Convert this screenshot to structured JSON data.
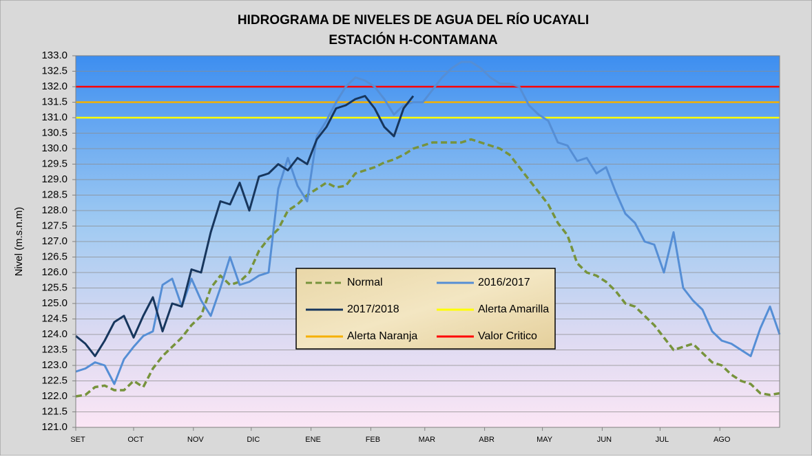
{
  "chart_data": {
    "type": "line",
    "title": [
      "HIDROGRAMA DE NIVELES DE AGUA DEL RÍO UCAYALI",
      "ESTACIÓN  H-CONTAMANA"
    ],
    "y_label": "Nivel (m.s.n.m)",
    "xlim": [
      0,
      365
    ],
    "xticks": [
      {
        "value": 0,
        "label": "SET"
      },
      {
        "value": 30,
        "label": "OCT"
      },
      {
        "value": 61,
        "label": "NOV"
      },
      {
        "value": 91,
        "label": "DIC"
      },
      {
        "value": 122,
        "label": "ENE"
      },
      {
        "value": 153,
        "label": "FEB"
      },
      {
        "value": 181,
        "label": "MAR"
      },
      {
        "value": 212,
        "label": "ABR"
      },
      {
        "value": 242,
        "label": "MAY"
      },
      {
        "value": 273,
        "label": "JUN"
      },
      {
        "value": 303,
        "label": "JUL"
      },
      {
        "value": 334,
        "label": "AGO"
      }
    ],
    "ylim": [
      121,
      133
    ],
    "yticks": [
      {
        "value": 121,
        "label": "121.0"
      },
      {
        "value": 121.5,
        "label": "121.5"
      },
      {
        "value": 122,
        "label": "122.0"
      },
      {
        "value": 122.5,
        "label": "122.5"
      },
      {
        "value": 123,
        "label": "123.0"
      },
      {
        "value": 123.5,
        "label": "123.5"
      },
      {
        "value": 124,
        "label": "124.0"
      },
      {
        "value": 124.5,
        "label": "124.5"
      },
      {
        "value": 125,
        "label": "125.0"
      },
      {
        "value": 125.5,
        "label": "125.5"
      },
      {
        "value": 126,
        "label": "126.0"
      },
      {
        "value": 126.5,
        "label": "126.5"
      },
      {
        "value": 127,
        "label": "127.0"
      },
      {
        "value": 127.5,
        "label": "127.5"
      },
      {
        "value": 128,
        "label": "128.0"
      },
      {
        "value": 128.5,
        "label": "128.5"
      },
      {
        "value": 129,
        "label": "129.0"
      },
      {
        "value": 129.5,
        "label": "129.5"
      },
      {
        "value": 130,
        "label": "130.0"
      },
      {
        "value": 130.5,
        "label": "130.5"
      },
      {
        "value": 131,
        "label": "131.0"
      },
      {
        "value": 131.5,
        "label": "131.5"
      },
      {
        "value": 132,
        "label": "132.0"
      },
      {
        "value": 132.5,
        "label": "132.5"
      },
      {
        "value": 133,
        "label": "133.0"
      }
    ],
    "grid": true,
    "x": [
      0,
      5,
      10,
      15,
      20,
      25,
      30,
      35,
      40,
      45,
      50,
      55,
      60,
      65,
      70,
      75,
      80,
      85,
      90,
      95,
      100,
      105,
      110,
      115,
      120,
      125,
      130,
      135,
      140,
      145,
      150,
      155,
      160,
      165,
      170,
      175,
      180,
      185,
      190,
      195,
      200,
      205,
      210,
      215,
      220,
      225,
      230,
      235,
      240,
      245,
      250,
      255,
      260,
      265,
      270,
      275,
      280,
      285,
      290,
      295,
      300,
      305,
      310,
      315,
      320,
      325,
      330,
      335,
      340,
      345,
      350,
      355,
      360,
      365
    ],
    "series": [
      {
        "name": "Normal",
        "color": "#77933c",
        "dashed": true,
        "values": [
          122.0,
          122.05,
          122.3,
          122.35,
          122.2,
          122.2,
          122.5,
          122.3,
          122.9,
          123.3,
          123.6,
          123.9,
          124.3,
          124.6,
          125.5,
          125.9,
          125.6,
          125.7,
          126.0,
          126.7,
          127.1,
          127.4,
          128.0,
          128.2,
          128.5,
          128.7,
          128.9,
          128.75,
          128.8,
          129.2,
          129.3,
          129.4,
          129.55,
          129.65,
          129.8,
          130.0,
          130.1,
          130.2,
          130.2,
          130.2,
          130.2,
          130.3,
          130.2,
          130.1,
          130.0,
          129.8,
          129.4,
          129.0,
          128.6,
          128.2,
          127.6,
          127.2,
          126.3,
          126.0,
          125.9,
          125.7,
          125.4,
          125.0,
          124.9,
          124.6,
          124.3,
          123.9,
          123.5,
          123.6,
          123.7,
          123.4,
          123.1,
          123.0,
          122.7,
          122.5,
          122.4,
          122.1,
          122.05,
          122.1
        ]
      },
      {
        "name": "2016/2017",
        "color": "#558ed5",
        "dashed": false,
        "values": [
          122.8,
          122.9,
          123.1,
          123.0,
          122.4,
          123.2,
          123.6,
          123.95,
          124.1,
          125.6,
          125.8,
          124.9,
          125.8,
          125.1,
          124.6,
          125.5,
          126.5,
          125.6,
          125.7,
          125.9,
          126.0,
          128.7,
          129.7,
          128.8,
          128.3,
          130.4,
          130.9,
          131.5,
          132.0,
          132.3,
          132.2,
          132.0,
          131.6,
          131.1,
          131.4,
          131.5,
          131.5,
          131.9,
          132.3,
          132.6,
          132.8,
          132.8,
          132.6,
          132.3,
          132.1,
          132.1,
          132.0,
          131.4,
          131.1,
          130.9,
          130.2,
          130.1,
          129.6,
          129.7,
          129.2,
          129.4,
          128.6,
          127.9,
          127.6,
          127.0,
          126.9,
          126.0,
          127.3,
          125.5,
          125.1,
          124.8,
          124.1,
          123.8,
          123.7,
          123.5,
          123.3,
          124.2,
          124.9,
          124.0
        ]
      },
      {
        "name": "2017/2018",
        "color": "#17365d",
        "dashed": false,
        "values": [
          123.95,
          123.7,
          123.3,
          123.8,
          124.4,
          124.6,
          123.9,
          124.6,
          125.2,
          124.1,
          125.0,
          124.9,
          126.1,
          126.0,
          127.3,
          128.3,
          128.2,
          128.9,
          128.0,
          129.1,
          129.2,
          129.5,
          129.3,
          129.7,
          129.5,
          130.3,
          130.7,
          131.3,
          131.4,
          131.6,
          131.7,
          131.3,
          130.7,
          130.4,
          131.3,
          131.7,
          null,
          null,
          null,
          null,
          null,
          null,
          null,
          null,
          null,
          null,
          null,
          null,
          null,
          null,
          null,
          null,
          null,
          null,
          null,
          null,
          null,
          null,
          null,
          null,
          null,
          null,
          null,
          null,
          null,
          null,
          null,
          null,
          null,
          null,
          null,
          null,
          null,
          null
        ]
      }
    ],
    "thresholds": [
      {
        "name": "Alerta Amarilla",
        "color": "#ffff00",
        "value": 131.0
      },
      {
        "name": "Alerta Naranja",
        "color": "#f6b000",
        "value": 131.5
      },
      {
        "name": "Valor Critico",
        "color": "#ff0000",
        "value": 132.0
      }
    ]
  }
}
